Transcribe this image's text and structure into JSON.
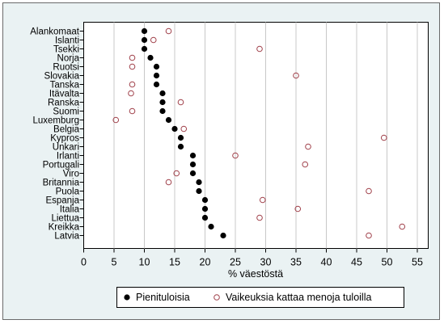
{
  "chart_data": {
    "type": "scatter",
    "orientation": "horizontal-dot-plot",
    "xlabel": "% väestöstä",
    "xlim": [
      0,
      55
    ],
    "xticks": [
      "0",
      "5",
      "10",
      "15",
      "20",
      "25",
      "30",
      "35",
      "40",
      "45",
      "50",
      "55"
    ],
    "grid": true,
    "legend_placement": "bottom",
    "categories": [
      "Alankomaat",
      "Islanti",
      "Tsekki",
      "Norja",
      "Ruotsi",
      "Slovakia",
      "Tanska",
      "Itävalta",
      "Ranska",
      "Suomi",
      "Luxemburg",
      "Belgia",
      "Kypros",
      "Unkari",
      "Irlanti",
      "Portugali",
      "Viro",
      "Britannia",
      "Puola",
      "Espanja",
      "Italia",
      "Liettua",
      "Kreikka",
      "Latvia"
    ],
    "series": [
      {
        "name": "Pienituloisia",
        "marker": "filled-circle",
        "color": "#000000",
        "values": [
          10,
          10,
          10,
          11,
          12,
          12,
          12,
          13,
          13,
          13,
          14,
          15,
          16,
          16,
          18,
          18,
          18,
          19,
          19,
          20,
          20,
          20,
          21,
          23
        ]
      },
      {
        "name": "Vaikeuksia kattaa menoja tuloilla",
        "marker": "hollow-circle",
        "color": "#a0404a",
        "values": [
          14,
          11.5,
          29,
          8,
          8,
          35,
          8,
          7.8,
          16,
          8,
          5.3,
          16.5,
          49.5,
          37,
          25,
          36.5,
          15.3,
          14,
          47,
          29.5,
          35.3,
          29,
          52.5,
          47
        ]
      }
    ]
  }
}
